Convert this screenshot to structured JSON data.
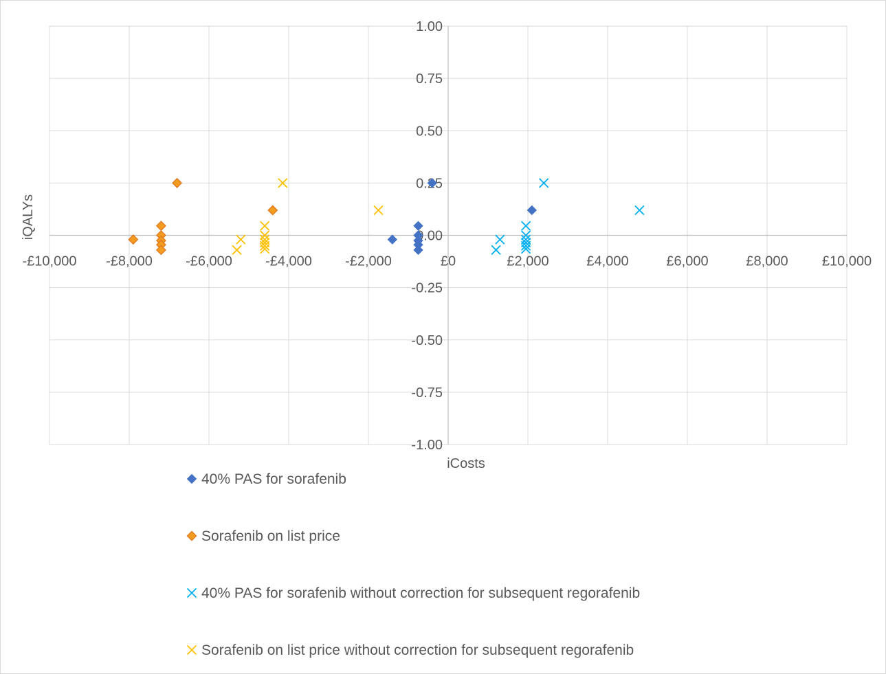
{
  "chart_data": {
    "type": "scatter",
    "title": "",
    "xlabel": "iCosts",
    "ylabel": "iQALYs",
    "xlim": [
      -10000,
      10000
    ],
    "ylim": [
      -1.0,
      1.0
    ],
    "x_tick_values": [
      -10000,
      -8000,
      -6000,
      -4000,
      -2000,
      0,
      2000,
      4000,
      6000,
      8000,
      10000
    ],
    "x_tick_labels": [
      "-£10,000",
      "-£8,000",
      "-£6,000",
      "-£4,000",
      "-£2,000",
      "£0",
      "£2,000",
      "£4,000",
      "£6,000",
      "£8,000",
      "£10,000"
    ],
    "y_tick_values": [
      1.0,
      0.75,
      0.5,
      0.25,
      0.0,
      -0.25,
      -0.5,
      -0.75,
      -1.0
    ],
    "y_tick_labels": [
      "1.00",
      "0.75",
      "0.50",
      "0.25",
      "0.00",
      "-0.25",
      "-0.50",
      "-0.75",
      "-1.00"
    ],
    "grid": true,
    "legend_position": "bottom",
    "series": [
      {
        "name": "40% PAS for sorafenib",
        "marker": "diamond",
        "color": "#4472C4",
        "points": [
          [
            -400,
            0.25
          ],
          [
            2100,
            0.12
          ],
          [
            -1400,
            -0.02
          ],
          [
            -750,
            0.045
          ],
          [
            -750,
            0.0
          ],
          [
            -750,
            -0.025
          ],
          [
            -750,
            -0.045
          ],
          [
            -750,
            -0.07
          ]
        ]
      },
      {
        "name": "Sorafenib on list price",
        "marker": "diamond-outlined",
        "color": "#ED7D31",
        "points": [
          [
            -6800,
            0.25
          ],
          [
            -4400,
            0.12
          ],
          [
            -7900,
            -0.02
          ],
          [
            -7200,
            0.045
          ],
          [
            -7200,
            0.0
          ],
          [
            -7200,
            -0.025
          ],
          [
            -7200,
            -0.045
          ],
          [
            -7200,
            -0.07
          ]
        ]
      },
      {
        "name": "40% PAS for sorafenib without correction for subsequent regorafenib",
        "marker": "x",
        "color": "#00B0F0",
        "points": [
          [
            2400,
            0.25
          ],
          [
            4800,
            0.12
          ],
          [
            1300,
            -0.02
          ],
          [
            1200,
            -0.07
          ],
          [
            1950,
            0.045
          ],
          [
            1950,
            0.0
          ],
          [
            1950,
            -0.02
          ],
          [
            1950,
            -0.035
          ],
          [
            1950,
            -0.05
          ],
          [
            1950,
            -0.065
          ]
        ]
      },
      {
        "name": "Sorafenib on list price without correction for subsequent regorafenib",
        "marker": "x",
        "color": "#FFC000",
        "points": [
          [
            -4150,
            0.25
          ],
          [
            -1750,
            0.12
          ],
          [
            -5200,
            -0.02
          ],
          [
            -5300,
            -0.07
          ],
          [
            -4600,
            0.045
          ],
          [
            -4600,
            0.0
          ],
          [
            -4600,
            -0.02
          ],
          [
            -4600,
            -0.035
          ],
          [
            -4600,
            -0.05
          ],
          [
            -4600,
            -0.065
          ]
        ]
      }
    ]
  }
}
